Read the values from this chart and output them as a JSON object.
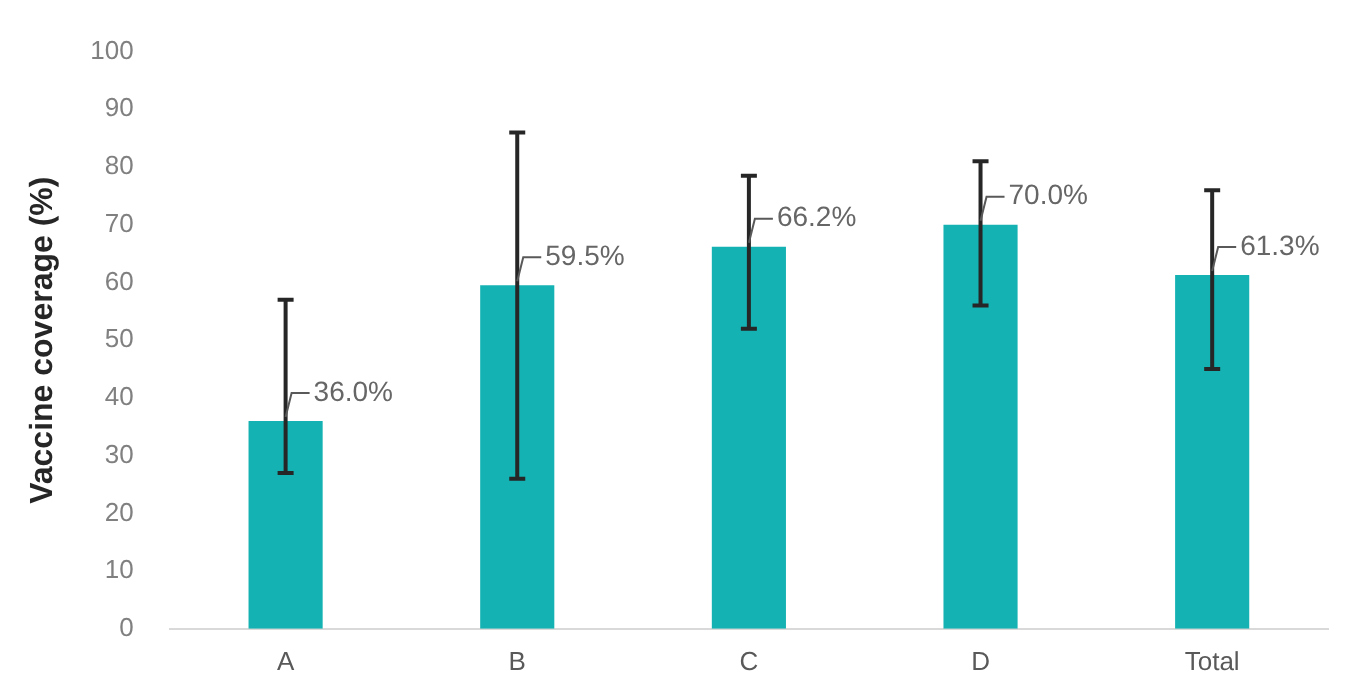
{
  "chart_data": {
    "type": "bar",
    "ylabel": "Vaccine coverage (%)",
    "categories": [
      "A",
      "B",
      "C",
      "D",
      "Total"
    ],
    "values": [
      36.0,
      59.5,
      66.2,
      70.0,
      61.3
    ],
    "value_labels": [
      "36.0%",
      "59.5%",
      "66.2%",
      "70.0%",
      "61.3%"
    ],
    "errors": [
      [
        27,
        57
      ],
      [
        26,
        86
      ],
      [
        52,
        78.5
      ],
      [
        56,
        81
      ],
      [
        45,
        76
      ]
    ],
    "color": "#14b2b2",
    "ylim": [
      0,
      100
    ],
    "yticks": [
      0,
      10,
      20,
      30,
      40,
      50,
      60,
      70,
      80,
      90,
      100
    ],
    "grid": false,
    "legend": false
  }
}
